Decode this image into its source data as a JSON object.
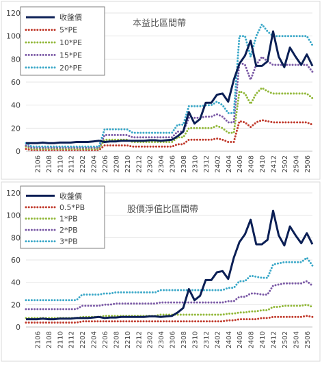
{
  "chart_data": [
    {
      "type": "line",
      "title": "本益比區間帶",
      "ylim": [
        0,
        120
      ],
      "yticks": [
        0,
        20,
        40,
        60,
        80,
        100,
        120
      ],
      "x": [
        "2104",
        "2105",
        "2106",
        "2107",
        "2108",
        "2109",
        "2110",
        "2111",
        "2112",
        "2201",
        "2202",
        "2203",
        "2204",
        "2205",
        "2206",
        "2207",
        "2208",
        "2209",
        "2210",
        "2211",
        "2212",
        "2301",
        "2302",
        "2303",
        "2304",
        "2305",
        "2306",
        "2307",
        "2308",
        "2309",
        "2310",
        "2311",
        "2312",
        "2401",
        "2402",
        "2403",
        "2404",
        "2405",
        "2406",
        "2407",
        "2408",
        "2409",
        "2410",
        "2411",
        "2412",
        "2501",
        "2502",
        "2503",
        "2504",
        "2505",
        "2506",
        "2507"
      ],
      "xtick_labels": [
        "2106",
        "2108",
        "2110",
        "2112",
        "2202",
        "2204",
        "2206",
        "2208",
        "2210",
        "2212",
        "2302",
        "2304",
        "2306",
        "2308",
        "2310",
        "2312",
        "2402",
        "2404",
        "2406",
        "2408",
        "2410",
        "2412",
        "2502",
        "2504",
        "2506"
      ],
      "legend_position": "top-left",
      "series": [
        {
          "name": "收盤價",
          "color": "#0b1f55",
          "style": "solid",
          "values": [
            7,
            7,
            7,
            7.5,
            7,
            7,
            7.5,
            7.5,
            7.5,
            8,
            8,
            8,
            8.5,
            9,
            8,
            8.5,
            8.5,
            9,
            9,
            9,
            9,
            9,
            9.5,
            9.5,
            9,
            9.5,
            10,
            13,
            17,
            34,
            24,
            28,
            42,
            42,
            49,
            50,
            43,
            62,
            76,
            83,
            96,
            74,
            74,
            78,
            104,
            82,
            73,
            90,
            82,
            75,
            84,
            74
          ]
        },
        {
          "name": "5*PE",
          "color": "#c0392b",
          "style": "dotted",
          "values": [
            2,
            1,
            1,
            1,
            1,
            1,
            1,
            1,
            1,
            1,
            1,
            1,
            1,
            1,
            5,
            5,
            5,
            5,
            5,
            4,
            4,
            4,
            4,
            4,
            4,
            4,
            4,
            6,
            6,
            10,
            10,
            10,
            10,
            10,
            11,
            10,
            8,
            8,
            26,
            25,
            21,
            25,
            27,
            26,
            25,
            25,
            25,
            25,
            25,
            25,
            25,
            23
          ]
        },
        {
          "name": "10*PE",
          "color": "#92b83a",
          "style": "dotted",
          "values": [
            4,
            2,
            2,
            2,
            2,
            2,
            2,
            2,
            2,
            2,
            2,
            2,
            2,
            2,
            10,
            10,
            10,
            10,
            10,
            8,
            8,
            8,
            8,
            8,
            8,
            8,
            8,
            12,
            12,
            20,
            20,
            20,
            20,
            20,
            22,
            20,
            16,
            16,
            52,
            50,
            41,
            50,
            55,
            52,
            50,
            50,
            50,
            50,
            50,
            50,
            50,
            46
          ]
        },
        {
          "name": "15*PE",
          "color": "#7b5aa6",
          "style": "dotted",
          "values": [
            5,
            3,
            3,
            3,
            3,
            3,
            3,
            3,
            3,
            3,
            3,
            3,
            3,
            3,
            14,
            14,
            14,
            14,
            14,
            12,
            12,
            12,
            12,
            12,
            12,
            12,
            12,
            17,
            17,
            29,
            29,
            29,
            30,
            30,
            32,
            30,
            25,
            25,
            77,
            75,
            62,
            75,
            82,
            78,
            75,
            75,
            75,
            75,
            75,
            75,
            75,
            69
          ]
        },
        {
          "name": "20*PE",
          "color": "#3ba8c8",
          "style": "dotted",
          "values": [
            7,
            4,
            4,
            4,
            4,
            4,
            4,
            4,
            4,
            4,
            4,
            4,
            4,
            4,
            19,
            19,
            19,
            19,
            19,
            16,
            16,
            16,
            16,
            16,
            16,
            16,
            16,
            23,
            23,
            39,
            39,
            39,
            40,
            40,
            43,
            40,
            33,
            33,
            100,
            100,
            82,
            100,
            110,
            104,
            100,
            100,
            100,
            100,
            100,
            100,
            100,
            92
          ]
        }
      ]
    },
    {
      "type": "line",
      "title": "股價淨值比區間帶",
      "ylim": [
        0,
        120
      ],
      "yticks": [
        0,
        20,
        40,
        60,
        80,
        100,
        120
      ],
      "x": [
        "2104",
        "2105",
        "2106",
        "2107",
        "2108",
        "2109",
        "2110",
        "2111",
        "2112",
        "2201",
        "2202",
        "2203",
        "2204",
        "2205",
        "2206",
        "2207",
        "2208",
        "2209",
        "2210",
        "2211",
        "2212",
        "2301",
        "2302",
        "2303",
        "2304",
        "2305",
        "2306",
        "2307",
        "2308",
        "2309",
        "2310",
        "2311",
        "2312",
        "2401",
        "2402",
        "2403",
        "2404",
        "2405",
        "2406",
        "2407",
        "2408",
        "2409",
        "2410",
        "2411",
        "2412",
        "2501",
        "2502",
        "2503",
        "2504",
        "2505",
        "2506",
        "2507"
      ],
      "xtick_labels": [
        "2106",
        "2108",
        "2110",
        "2112",
        "2202",
        "2204",
        "2206",
        "2208",
        "2210",
        "2212",
        "2302",
        "2304",
        "2306",
        "2308",
        "2310",
        "2312",
        "2402",
        "2404",
        "2406",
        "2408",
        "2410",
        "2412",
        "2502",
        "2504",
        "2506"
      ],
      "legend_position": "top-left",
      "series": [
        {
          "name": "收盤價",
          "color": "#0b1f55",
          "style": "solid",
          "values": [
            7,
            7,
            7,
            7.5,
            7,
            7,
            7.5,
            7.5,
            7.5,
            8,
            8,
            8,
            8.5,
            9,
            8,
            8.5,
            8.5,
            9,
            9,
            9,
            9,
            9,
            9.5,
            9.5,
            9,
            9.5,
            10,
            13,
            17,
            34,
            24,
            28,
            42,
            42,
            49,
            50,
            43,
            62,
            76,
            83,
            96,
            74,
            74,
            78,
            104,
            82,
            73,
            90,
            82,
            75,
            84,
            74
          ]
        },
        {
          "name": "0.5*PB",
          "color": "#c0392b",
          "style": "dotted",
          "values": [
            4,
            4,
            4,
            4,
            4,
            4,
            4,
            4,
            4,
            4,
            5,
            5,
            5,
            5,
            5,
            5,
            5,
            5,
            5,
            5,
            5,
            5,
            5,
            5,
            5,
            5,
            5,
            5,
            5,
            5,
            5,
            5,
            5,
            5,
            5,
            5,
            6,
            6,
            7,
            7,
            7,
            7,
            8,
            8,
            9,
            9,
            9,
            9,
            9,
            9,
            10,
            9
          ]
        },
        {
          "name": "1*PB",
          "color": "#92b83a",
          "style": "dotted",
          "values": [
            8,
            8,
            8,
            8,
            8,
            8,
            8,
            8,
            8,
            8,
            9,
            9,
            9,
            9,
            10,
            10,
            10,
            10,
            10,
            10,
            10,
            10,
            10,
            10,
            11,
            11,
            11,
            11,
            11,
            11,
            11,
            11,
            11,
            11,
            11,
            11,
            12,
            12,
            13,
            13,
            14,
            14,
            15,
            15,
            18,
            18,
            19,
            19,
            19,
            19,
            20,
            18
          ]
        },
        {
          "name": "2*PB",
          "color": "#7b5aa6",
          "style": "dotted",
          "values": [
            16,
            16,
            16,
            16,
            16,
            16,
            16,
            16,
            16,
            16,
            19,
            19,
            19,
            19,
            20,
            20,
            21,
            21,
            21,
            21,
            21,
            21,
            21,
            21,
            22,
            22,
            22,
            22,
            22,
            22,
            22,
            22,
            22,
            22,
            22,
            22,
            23,
            23,
            27,
            27,
            30,
            30,
            29,
            29,
            37,
            38,
            39,
            39,
            39,
            39,
            41,
            37
          ]
        },
        {
          "name": "3*PB",
          "color": "#3ba8c8",
          "style": "dotted",
          "values": [
            24,
            24,
            24,
            24,
            24,
            24,
            24,
            24,
            24,
            24,
            29,
            29,
            29,
            29,
            30,
            30,
            31,
            31,
            31,
            31,
            31,
            31,
            31,
            31,
            33,
            33,
            33,
            33,
            33,
            33,
            33,
            33,
            33,
            33,
            33,
            33,
            35,
            35,
            41,
            41,
            46,
            45,
            44,
            44,
            56,
            57,
            58,
            58,
            58,
            58,
            62,
            55
          ]
        }
      ]
    }
  ]
}
